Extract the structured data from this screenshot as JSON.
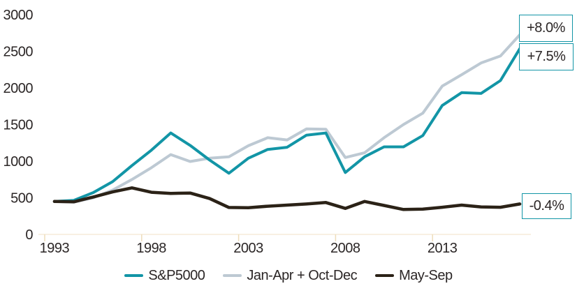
{
  "chart_data": {
    "type": "line",
    "title": "",
    "xlabel": "",
    "ylabel": "",
    "grid": false,
    "legend_position": "bottom",
    "ylim": [
      0,
      3000
    ],
    "y_tick_labels": [
      "0",
      "500",
      "1000",
      "1500",
      "2000",
      "2500",
      "3000"
    ],
    "y_tick_values": [
      0,
      500,
      1000,
      1500,
      2000,
      2500,
      3000
    ],
    "x_tick_labels": [
      "1993",
      "1998",
      "2003",
      "2008",
      "2013"
    ],
    "x_tick_values": [
      1993,
      1998,
      2003,
      2008,
      2013
    ],
    "x_years": [
      1993,
      1994,
      1995,
      1996,
      1997,
      1998,
      1999,
      2000,
      2001,
      2002,
      2003,
      2004,
      2005,
      2006,
      2007,
      2008,
      2009,
      2010,
      2011,
      2012,
      2013,
      2014,
      2015,
      2016,
      2017
    ],
    "series": [
      {
        "name": "Jan-Apr + Oct-Dec",
        "color": "#bdc9d3",
        "stroke_width": 4,
        "values": [
          450,
          440,
          500,
          605,
          750,
          910,
          1090,
          995,
          1040,
          1060,
          1210,
          1320,
          1290,
          1440,
          1435,
          1050,
          1115,
          1320,
          1500,
          1655,
          2025,
          2180,
          2340,
          2435,
          2725
        ]
      },
      {
        "name": "S&P5000",
        "color": "#1295a6",
        "stroke_width": 4,
        "values": [
          450,
          465,
          570,
          720,
          940,
          1150,
          1385,
          1215,
          1015,
          835,
          1040,
          1160,
          1190,
          1355,
          1385,
          845,
          1060,
          1195,
          1195,
          1350,
          1760,
          1935,
          1925,
          2100,
          2535
        ]
      },
      {
        "name": "May-Sep",
        "color": "#2b2217",
        "stroke_width": 4.5,
        "values": [
          450,
          445,
          510,
          580,
          635,
          575,
          560,
          565,
          490,
          368,
          365,
          385,
          400,
          415,
          435,
          355,
          450,
          395,
          340,
          345,
          370,
          400,
          375,
          370,
          415
        ]
      }
    ],
    "annotations": [
      {
        "text": "+8.0%",
        "series": "Jan-Apr + Oct-Dec"
      },
      {
        "text": "+7.5%",
        "series": "S&P5000"
      },
      {
        "text": "-0.4%",
        "series": "May-Sep"
      }
    ]
  },
  "legend": {
    "items": [
      {
        "label": "S&P5000",
        "color": "#1295a6"
      },
      {
        "label": "Jan-Apr + Oct-Dec",
        "color": "#bdc9d3"
      },
      {
        "label": "May-Sep",
        "color": "#2b2217"
      }
    ]
  },
  "colors": {
    "teal": "#1295a6",
    "light_gray_blue": "#bdc9d3",
    "dark_brown": "#2b2217",
    "axis_line": "#f5ecd8",
    "tick": "#eeddbb",
    "text": "#2b2626",
    "background": "#ffffff",
    "annotation_border": "#1295a6"
  }
}
